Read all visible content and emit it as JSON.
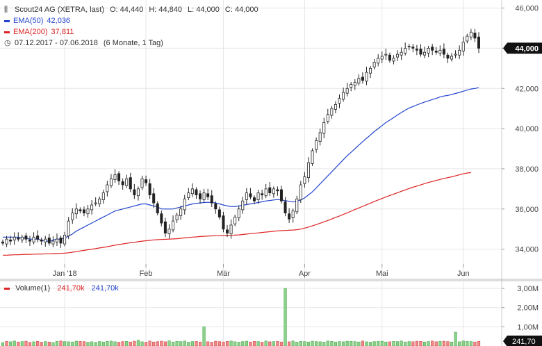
{
  "chart_data": [
    {
      "type": "candlestick",
      "title": "Scout24 AG (XETRA, last)",
      "ohlc_label": {
        "o": "O: 44,440",
        "h": "H: 44,840",
        "l": "L: 44,000",
        "c": "C: 44,000"
      },
      "period_label": "07.12.2017 - 07.06.2018",
      "period_note": "(6 Monate, 1 Tag)",
      "current_price_label": "44,000",
      "ylim": [
        32500,
        46400
      ],
      "y_ticks": [
        {
          "value": 34000,
          "label": "34,000"
        },
        {
          "value": 36000,
          "label": "36,000"
        },
        {
          "value": 38000,
          "label": "38,000"
        },
        {
          "value": 40000,
          "label": "40,000"
        },
        {
          "value": 42000,
          "label": "42,000"
        },
        {
          "value": 44000,
          "label": "44,000"
        },
        {
          "value": 46000,
          "label": "46,000"
        }
      ],
      "x_ticks": [
        {
          "index": 16,
          "label": "Jan '18"
        },
        {
          "index": 37,
          "label": "Feb"
        },
        {
          "index": 57,
          "label": "Mär"
        },
        {
          "index": 78,
          "label": "Apr"
        },
        {
          "index": 98,
          "label": "Mai"
        },
        {
          "index": 119,
          "label": "Jun"
        }
      ],
      "closes": [
        34.3,
        34.5,
        34.4,
        34.6,
        34.5,
        34.6,
        34.5,
        34.4,
        34.6,
        34.5,
        34.4,
        34.5,
        34.3,
        34.4,
        34.5,
        34.3,
        34.7,
        35.4,
        35.8,
        36.0,
        35.9,
        35.8,
        36.0,
        36.2,
        36.3,
        36.5,
        36.8,
        37.2,
        37.5,
        37.7,
        37.4,
        37.2,
        37.5,
        37.0,
        36.7,
        37.0,
        37.5,
        37.3,
        36.7,
        36.3,
        35.8,
        35.3,
        34.8,
        35.0,
        35.4,
        35.7,
        36.0,
        36.5,
        36.8,
        37.0,
        36.7,
        36.5,
        36.8,
        36.6,
        36.3,
        36.0,
        35.6,
        35.0,
        34.8,
        35.2,
        35.6,
        36.0,
        36.4,
        36.8,
        36.6,
        36.4,
        36.8,
        36.7,
        37.0,
        36.8,
        37.0,
        36.9,
        36.4,
        35.8,
        35.5,
        35.9,
        36.5,
        37.2,
        37.6,
        38.3,
        38.9,
        39.4,
        39.8,
        40.3,
        40.7,
        41.0,
        41.2,
        41.5,
        41.8,
        42.0,
        42.2,
        42.3,
        42.5,
        42.4,
        42.8,
        43.0,
        43.3,
        43.5,
        43.6,
        43.7,
        43.4,
        43.5,
        43.7,
        43.8,
        44.0,
        44.1,
        44.0,
        43.9,
        43.7,
        43.8,
        44.0,
        43.9,
        43.8,
        43.9,
        43.7,
        43.5,
        43.6,
        43.7,
        43.9,
        44.3,
        44.6,
        44.8,
        44.5,
        44.0
      ],
      "ema": [
        {
          "name": "EMA(50)",
          "value_label": "42,036",
          "color": "#2244cc",
          "values": [
            34.6,
            34.6,
            34.6,
            34.6,
            34.6,
            34.55,
            34.55,
            34.5,
            34.5,
            34.5,
            34.45,
            34.4,
            34.4,
            34.45,
            34.5,
            34.5,
            34.55,
            34.65,
            34.75,
            34.9,
            35.0,
            35.1,
            35.2,
            35.3,
            35.4,
            35.5,
            35.6,
            35.7,
            35.8,
            35.9,
            35.95,
            36.0,
            36.05,
            36.1,
            36.15,
            36.2,
            36.25,
            36.25,
            36.2,
            36.15,
            36.1,
            36.0,
            36.0,
            36.0,
            36.0,
            36.05,
            36.1,
            36.15,
            36.2,
            36.25,
            36.28,
            36.3,
            36.32,
            36.33,
            36.32,
            36.3,
            36.25,
            36.2,
            36.15,
            36.12,
            36.12,
            36.15,
            36.18,
            36.22,
            36.25,
            36.28,
            36.32,
            36.36,
            36.4,
            36.42,
            36.45,
            36.47,
            36.45,
            36.42,
            36.38,
            36.35,
            36.38,
            36.45,
            36.55,
            36.7,
            36.85,
            37.05,
            37.25,
            37.45,
            37.65,
            37.85,
            38.05,
            38.25,
            38.45,
            38.65,
            38.82,
            39.0,
            39.18,
            39.35,
            39.52,
            39.68,
            39.85,
            40.0,
            40.15,
            40.3,
            40.42,
            40.55,
            40.68,
            40.8,
            40.92,
            41.02,
            41.1,
            41.18,
            41.25,
            41.32,
            41.38,
            41.45,
            41.5,
            41.58,
            41.62,
            41.65,
            41.7,
            41.75,
            41.8,
            41.86,
            41.92,
            41.97,
            42.0,
            42.036
          ]
        },
        {
          "name": "EMA(200)",
          "value_label": "37,811",
          "color": "#dd2222",
          "values": [
            33.7,
            33.7,
            33.71,
            33.72,
            33.72,
            33.73,
            33.74,
            33.74,
            33.75,
            33.76,
            33.76,
            33.77,
            33.77,
            33.78,
            33.78,
            33.79,
            33.8,
            33.82,
            33.85,
            33.88,
            33.91,
            33.94,
            33.97,
            34.0,
            34.03,
            34.06,
            34.09,
            34.12,
            34.16,
            34.2,
            34.23,
            34.26,
            34.29,
            34.32,
            34.34,
            34.37,
            34.4,
            34.42,
            34.44,
            34.46,
            34.47,
            34.48,
            34.49,
            34.5,
            34.51,
            34.52,
            34.54,
            34.56,
            34.58,
            34.6,
            34.61,
            34.63,
            34.64,
            34.65,
            34.66,
            34.67,
            34.67,
            34.68,
            34.68,
            34.69,
            34.7,
            34.71,
            34.73,
            34.75,
            34.77,
            34.79,
            34.81,
            34.83,
            34.85,
            34.87,
            34.89,
            34.91,
            34.92,
            34.93,
            34.94,
            34.95,
            34.97,
            35.0,
            35.05,
            35.1,
            35.16,
            35.22,
            35.29,
            35.36,
            35.43,
            35.5,
            35.58,
            35.65,
            35.73,
            35.81,
            35.89,
            35.97,
            36.05,
            36.13,
            36.21,
            36.29,
            36.37,
            36.45,
            36.52,
            36.6,
            36.67,
            36.74,
            36.81,
            36.88,
            36.95,
            37.02,
            37.08,
            37.14,
            37.2,
            37.26,
            37.32,
            37.37,
            37.42,
            37.47,
            37.52,
            37.56,
            37.6,
            37.65,
            37.7,
            37.75,
            37.79,
            37.811
          ]
        }
      ]
    },
    {
      "type": "bar",
      "title": "Volume(1)",
      "value_label_red": "241,70k",
      "value_label_blue": "241,70k",
      "current_label": "241,70",
      "ylim": [
        0,
        3400
      ],
      "y_ticks": [
        {
          "value": 1000,
          "label": "1,00M"
        },
        {
          "value": 2000,
          "label": "2,00M"
        },
        {
          "value": 3000,
          "label": "3,00M"
        }
      ],
      "values": [
        180,
        240,
        220,
        260,
        210,
        230,
        250,
        190,
        220,
        240,
        200,
        230,
        210,
        180,
        240,
        260,
        230,
        220,
        210,
        250,
        240,
        230,
        200,
        220,
        190,
        230,
        210,
        240,
        260,
        220,
        200,
        230,
        240,
        210,
        250,
        300,
        220,
        200,
        260,
        210,
        230,
        250,
        220,
        270,
        210,
        240,
        230,
        260,
        200,
        230,
        240,
        210,
        1000,
        220,
        200,
        250,
        230,
        210,
        240,
        260,
        220,
        200,
        230,
        250,
        210,
        240,
        230,
        200,
        260,
        220,
        230,
        240,
        210,
        3000,
        220,
        260,
        200,
        240,
        230,
        210,
        250,
        230,
        220,
        200,
        260,
        240,
        210,
        230,
        220,
        250,
        240,
        230,
        210,
        260,
        220,
        200,
        230,
        240,
        250,
        210,
        220,
        240,
        230,
        260,
        210,
        230,
        220,
        250,
        240,
        210,
        230,
        260,
        220,
        240,
        250,
        230,
        210,
        720,
        220,
        260,
        240,
        230,
        210,
        240
      ],
      "up": [
        1,
        0,
        1,
        1,
        0,
        1,
        0,
        0,
        1,
        0,
        0,
        1,
        0,
        1,
        1,
        0,
        1,
        1,
        1,
        1,
        0,
        0,
        1,
        1,
        1,
        1,
        1,
        1,
        1,
        1,
        0,
        0,
        1,
        0,
        0,
        1,
        1,
        0,
        0,
        0,
        0,
        0,
        0,
        1,
        1,
        1,
        1,
        1,
        1,
        1,
        0,
        0,
        1,
        0,
        0,
        0,
        0,
        0,
        0,
        1,
        1,
        1,
        1,
        1,
        0,
        0,
        1,
        0,
        1,
        0,
        1,
        0,
        0,
        1,
        0,
        1,
        1,
        1,
        1,
        1,
        1,
        1,
        1,
        1,
        1,
        1,
        1,
        1,
        1,
        1,
        1,
        1,
        1,
        0,
        1,
        1,
        1,
        1,
        1,
        1,
        0,
        1,
        1,
        1,
        1,
        1,
        0,
        0,
        0,
        1,
        1,
        0,
        0,
        1,
        0,
        0,
        1,
        1,
        1,
        1,
        1,
        1,
        0,
        0
      ]
    }
  ]
}
